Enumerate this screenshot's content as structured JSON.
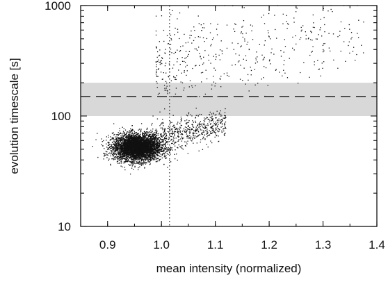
{
  "chart_data": {
    "type": "scatter",
    "title": "",
    "xlabel": "mean intensity (normalized)",
    "ylabel": "evolution timescale [s]",
    "xlim": [
      0.85,
      1.4
    ],
    "ylim": [
      10,
      1000
    ],
    "y_scale": "log",
    "grid": false,
    "x_ticks": [
      0.9,
      1.0,
      1.1,
      1.2,
      1.3,
      1.4
    ],
    "x_tick_labels": [
      "0.9",
      "1.0",
      "1.1",
      "1.2",
      "1.3",
      "1.4"
    ],
    "y_ticks": [
      10,
      100,
      1000
    ],
    "y_tick_labels": [
      "10",
      "100",
      "1000"
    ],
    "reference_band": {
      "y_min": 100,
      "y_max": 200,
      "fill_color": "#d8d8d8"
    },
    "reference_hline": {
      "y": 150,
      "style": "dashed"
    },
    "reference_vline": {
      "x": 1.015,
      "style": "dotted"
    },
    "point_color": "#111111",
    "clusters": [
      {
        "label": "dense core",
        "x_center": 0.955,
        "x_spread": 0.022,
        "y_center": 52,
        "y_spread": 0.06,
        "count": 4500
      },
      {
        "label": "tail toward higher intensity",
        "x_range": [
          0.98,
          1.12
        ],
        "y_range": [
          55,
          95
        ],
        "count": 600
      },
      {
        "label": "upper scattered population",
        "x_range": [
          0.99,
          1.38
        ],
        "y_range": [
          150,
          1000
        ],
        "count": 450
      }
    ]
  }
}
